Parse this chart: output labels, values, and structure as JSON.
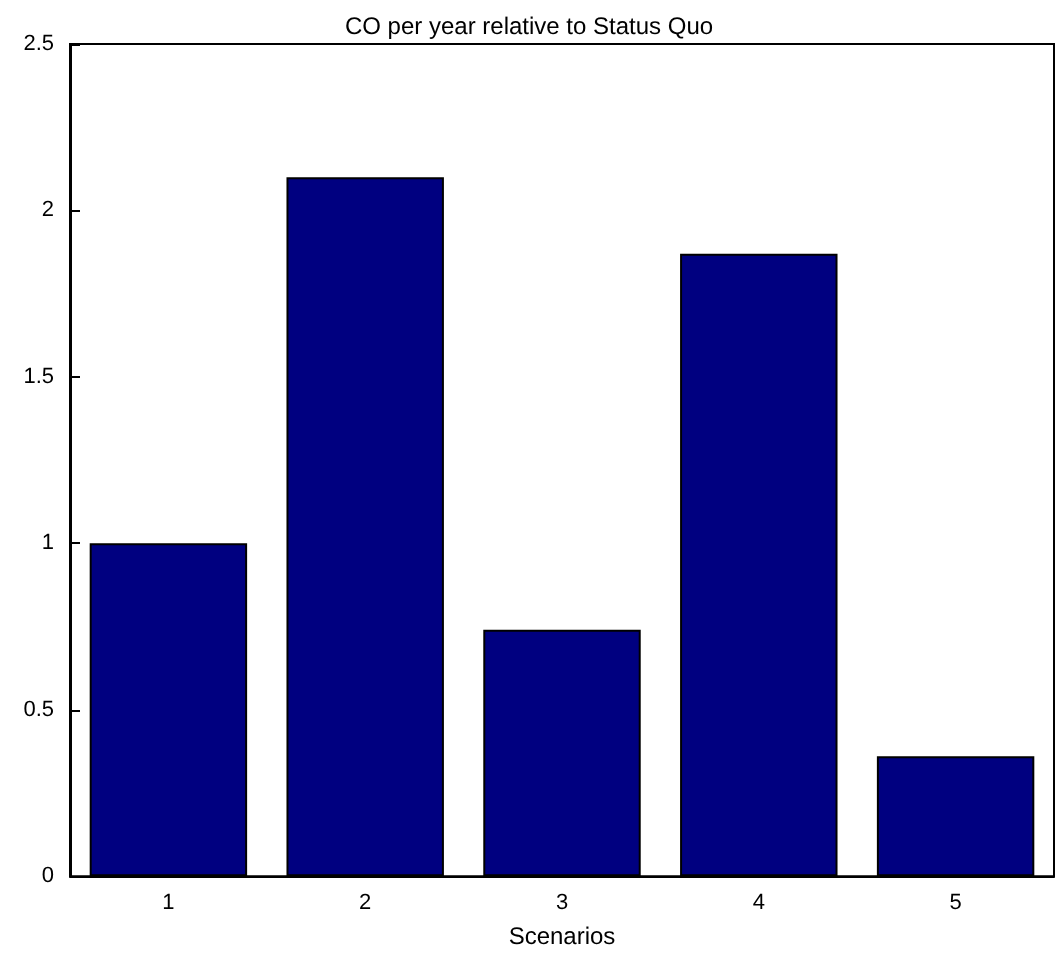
{
  "chart_data": {
    "type": "bar",
    "title": "CO per year relative to Status Quo",
    "xlabel": "Scenarios",
    "categories": [
      "1",
      "2",
      "3",
      "4",
      "5"
    ],
    "values": [
      1.0,
      2.1,
      0.74,
      1.87,
      0.36
    ],
    "color": "#000080",
    "ylim": [
      0,
      2.5
    ],
    "yticks": [
      0,
      0.5,
      1,
      1.5,
      2,
      2.5
    ],
    "grid": false
  }
}
